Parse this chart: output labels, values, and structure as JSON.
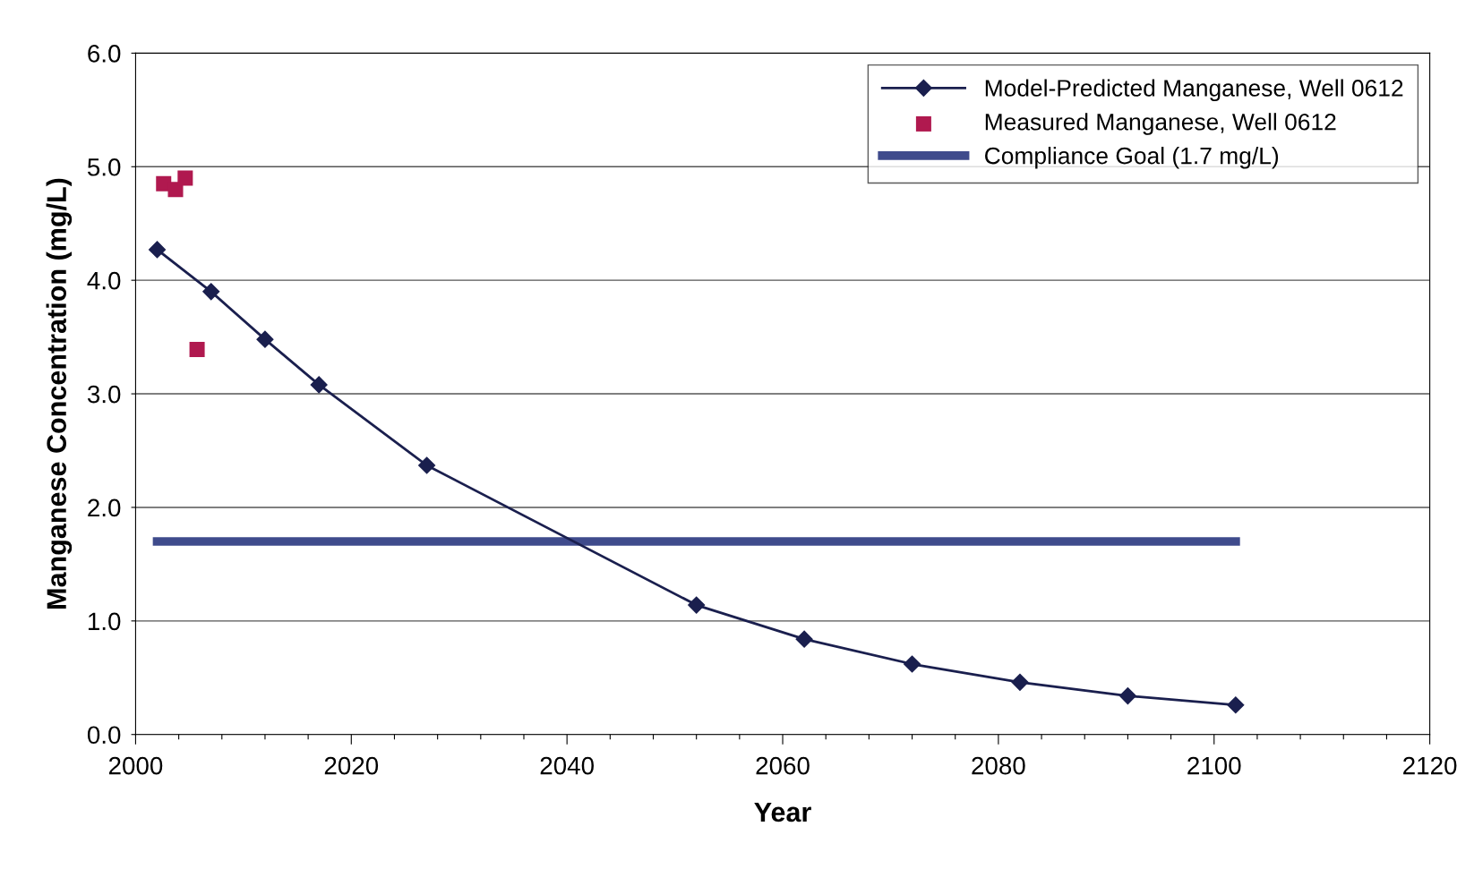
{
  "chart_data": {
    "type": "line",
    "xlabel": "Year",
    "ylabel": "Manganese Concentration (mg/L)",
    "xlim": [
      2000,
      2120
    ],
    "ylim": [
      0,
      6
    ],
    "xticks": [
      2000,
      {
        "value": 2004,
        "label": null
      },
      {
        "value": 2008,
        "label": null
      },
      {
        "value": 2012,
        "label": null
      },
      {
        "value": 2016,
        "label": null
      },
      2020,
      {
        "value": 2024,
        "label": null
      },
      {
        "value": 2028,
        "label": null
      },
      {
        "value": 2032,
        "label": null
      },
      {
        "value": 2036,
        "label": null
      },
      2040,
      {
        "value": 2044,
        "label": null
      },
      {
        "value": 2048,
        "label": null
      },
      {
        "value": 2052,
        "label": null
      },
      {
        "value": 2056,
        "label": null
      },
      2060,
      {
        "value": 2064,
        "label": null
      },
      {
        "value": 2068,
        "label": null
      },
      {
        "value": 2072,
        "label": null
      },
      {
        "value": 2076,
        "label": null
      },
      2080,
      {
        "value": 2084,
        "label": null
      },
      {
        "value": 2088,
        "label": null
      },
      {
        "value": 2092,
        "label": null
      },
      {
        "value": 2096,
        "label": null
      },
      2100,
      {
        "value": 2104,
        "label": null
      },
      {
        "value": 2108,
        "label": null
      },
      {
        "value": 2112,
        "label": null
      },
      {
        "value": 2116,
        "label": null
      },
      2120
    ],
    "yticks": [
      {
        "value": 0,
        "label": "0.0"
      },
      {
        "value": 1,
        "label": "1.0"
      },
      {
        "value": 2,
        "label": "2.0"
      },
      {
        "value": 3,
        "label": "3.0"
      },
      {
        "value": 4,
        "label": "4.0"
      },
      {
        "value": 5,
        "label": "5.0"
      },
      {
        "value": 6,
        "label": "6.0"
      }
    ],
    "grid": "y",
    "legend": "top right",
    "series": [
      {
        "name": "Model-Predicted Manganese, Well 0612",
        "marker": "diamond",
        "color": "#1a1f4e",
        "x": [
          2002,
          2007,
          2012,
          2017,
          2027,
          2052,
          2062,
          2072,
          2082,
          2092,
          2102
        ],
        "values": [
          4.27,
          3.9,
          3.48,
          3.08,
          2.37,
          1.14,
          0.84,
          0.62,
          0.46,
          0.34,
          0.26
        ]
      },
      {
        "name": "Measured Manganese, Well 0612",
        "type": "scatter",
        "marker": "square",
        "color": "#b0194f",
        "x": [
          2002.6,
          2003.7,
          2004.6,
          2005.7
        ],
        "values": [
          4.85,
          4.8,
          4.9,
          3.39
        ]
      },
      {
        "name": "Compliance Goal (1.7 mg/L)",
        "marker": "none",
        "color": "#3f4b8c",
        "x": [
          2002,
          2102
        ],
        "values": [
          1.7,
          1.7
        ]
      }
    ]
  }
}
